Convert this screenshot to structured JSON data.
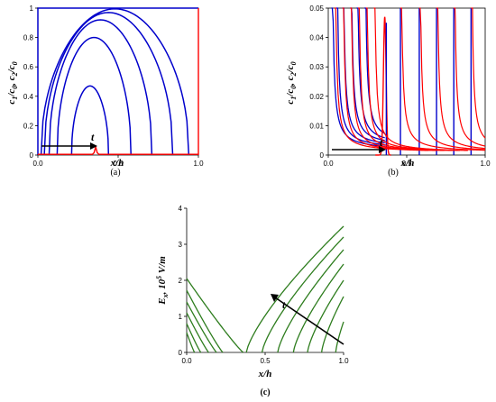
{
  "chart_data": [
    {
      "panel_label": "(a)",
      "type": "line",
      "xlabel": "x/h",
      "ylabel": "c1/c0, c2/c0",
      "xlim": [
        0.0,
        1.0
      ],
      "ylim": [
        0,
        1
      ],
      "xticks": [
        "0.0",
        "0.5",
        "1.0"
      ],
      "yticks": [
        "0",
        "0.2",
        "0.4",
        "0.6",
        "0.8",
        "1"
      ],
      "annotation": "t",
      "series_colors": {
        "c1": "#0000cc",
        "c2": "#ff0000"
      },
      "c1_curves": [
        {
          "left": 0.21,
          "right": 0.44,
          "peak": 0.47
        },
        {
          "left": 0.12,
          "right": 0.58,
          "peak": 0.8
        },
        {
          "left": 0.07,
          "right": 0.71,
          "peak": 0.92
        },
        {
          "left": 0.04,
          "right": 0.84,
          "peak": 0.97
        },
        {
          "left": 0.02,
          "right": 0.94,
          "peak": 0.995
        },
        {
          "left": 0.0,
          "right": 1.0,
          "peak": 1.0
        }
      ],
      "c2_peak": {
        "x": 0.36,
        "y": 0.05
      }
    },
    {
      "panel_label": "(b)",
      "type": "line",
      "xlabel": "x/h",
      "ylabel": "c1/c0, c2/c0",
      "xlim": [
        0.0,
        1.0
      ],
      "ylim": [
        0,
        0.05
      ],
      "xticks": [
        "0.0",
        "0.5",
        "1.0"
      ],
      "yticks": [
        "0",
        "0.01",
        "0.02",
        "0.03",
        "0.04",
        "0.05"
      ],
      "annotation": "t",
      "peak": {
        "x": 0.36,
        "y": 0.047
      },
      "blue_fronts_left": [
        0.02,
        0.05,
        0.09,
        0.14,
        0.18,
        0.23
      ],
      "blue_fronts_right": [
        0.46,
        0.58,
        0.69,
        0.8,
        0.91
      ],
      "red_fronts": [
        0.04,
        0.09,
        0.14,
        0.19,
        0.24,
        0.29,
        0.46,
        0.58,
        0.69,
        0.8,
        0.91
      ]
    },
    {
      "panel_label": "(c)",
      "type": "line",
      "xlabel": "x/h",
      "ylabel": "Ex 10^5 V/m",
      "xlim": [
        0.0,
        1.0
      ],
      "ylim": [
        0,
        4
      ],
      "xticks": [
        "0.0",
        "0.5",
        "1.0"
      ],
      "yticks": [
        "0",
        "1",
        "2",
        "3",
        "4"
      ],
      "annotation": "t",
      "series_color": "#2e7d1e",
      "left_curves": [
        {
          "e0": 2.05,
          "zero": 0.36
        },
        {
          "e0": 1.72,
          "zero": 0.23
        },
        {
          "e0": 1.4,
          "zero": 0.19
        },
        {
          "e0": 1.1,
          "zero": 0.14
        },
        {
          "e0": 0.8,
          "zero": 0.09
        },
        {
          "e0": 0.55,
          "zero": 0.05
        }
      ],
      "right_curves": [
        {
          "zero": 0.38,
          "e1": 3.5
        },
        {
          "zero": 0.48,
          "e1": 3.2
        },
        {
          "zero": 0.58,
          "e1": 2.85
        },
        {
          "zero": 0.68,
          "e1": 2.45
        },
        {
          "zero": 0.77,
          "e1": 2.0
        },
        {
          "zero": 0.86,
          "e1": 1.55
        },
        {
          "zero": 0.95,
          "e1": 0.85
        }
      ]
    }
  ]
}
